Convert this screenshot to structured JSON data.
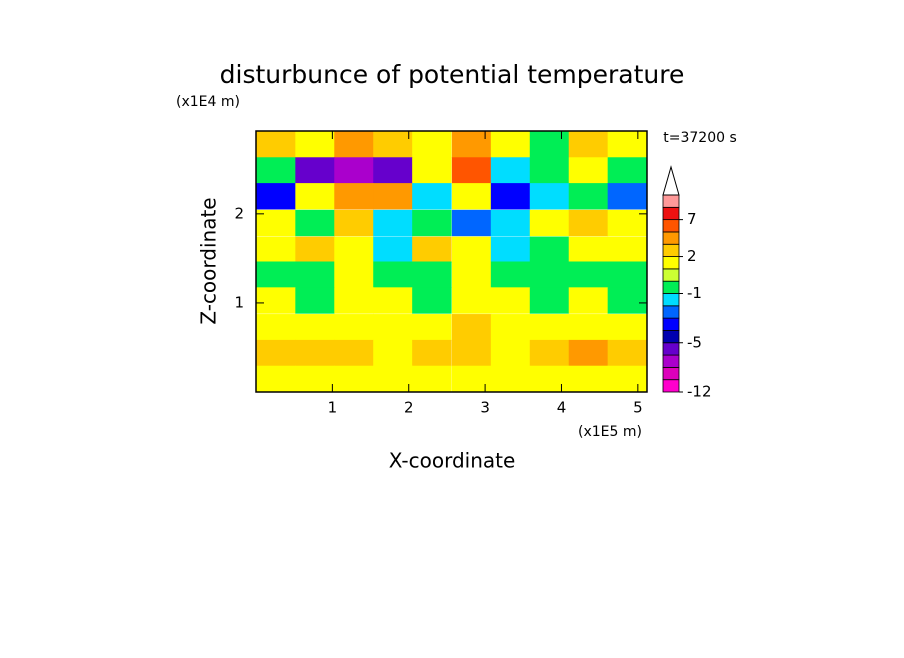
{
  "chart_data": {
    "type": "contour",
    "title": "disturbunce of potential temperature",
    "y_unit": "(x1E4 m)",
    "x_unit": "(x1E5 m)",
    "time_label": "t=37200 s",
    "xlabel": "X-coordinate",
    "ylabel": "Z-coordinate",
    "xlim": [
      0,
      5.12
    ],
    "ylim": [
      0,
      2.93
    ],
    "xticks": [
      1,
      2,
      3,
      4,
      5
    ],
    "yticks": [
      1,
      2
    ],
    "x": [
      0.26,
      0.77,
      1.28,
      1.79,
      2.3,
      2.82,
      3.33,
      3.84,
      4.35,
      4.86
    ],
    "y": [
      2.78,
      2.49,
      2.2,
      1.9,
      1.6,
      1.32,
      1.03,
      0.73,
      0.44,
      0.15
    ],
    "z": [
      [
        2,
        1,
        3,
        2,
        1,
        3,
        1,
        -0.5,
        2,
        1
      ],
      [
        -0.5,
        -6,
        -7,
        -6,
        1,
        5,
        -1.5,
        -0.5,
        1,
        -0.5
      ],
      [
        -4,
        1,
        3,
        4,
        -2,
        1,
        -4,
        -1.5,
        -0.5,
        -3
      ],
      [
        1,
        -0.5,
        2,
        -2,
        -0.5,
        -3,
        -1.5,
        1,
        2,
        1
      ],
      [
        1,
        2,
        1,
        -1.5,
        2,
        1,
        -2,
        -0.5,
        1,
        1
      ],
      [
        -0.5,
        -0.5,
        1,
        -0.5,
        -0.5,
        1,
        -0.5,
        -0.5,
        -0.5,
        -0.5
      ],
      [
        1,
        -0.5,
        1,
        1,
        -0.5,
        1,
        1,
        -0.5,
        1,
        -0.5
      ],
      [
        1,
        1,
        1,
        1,
        1,
        2,
        1,
        1,
        1,
        1
      ],
      [
        2,
        2,
        2,
        1,
        2,
        2,
        1,
        2,
        3,
        2
      ],
      [
        1,
        1,
        1,
        1,
        1,
        1,
        1,
        1,
        1,
        1
      ]
    ],
    "levels": [
      -12,
      -10,
      -8,
      -6,
      -5,
      -4,
      -3,
      -2,
      -1,
      0,
      1,
      2,
      3,
      5,
      7,
      9,
      11
    ],
    "colors": [
      "#ff00cc",
      "#dd00bb",
      "#aa00cc",
      "#6600cc",
      "#0000b0",
      "#0000ff",
      "#0066ff",
      "#00ddff",
      "#00ee55",
      "#ccff33",
      "#ffff00",
      "#ffcc00",
      "#ff9900",
      "#ff5500",
      "#ee1111",
      "#ff9999"
    ],
    "colorbar_ticks": [
      -12,
      -5,
      -1,
      2,
      7
    ]
  }
}
